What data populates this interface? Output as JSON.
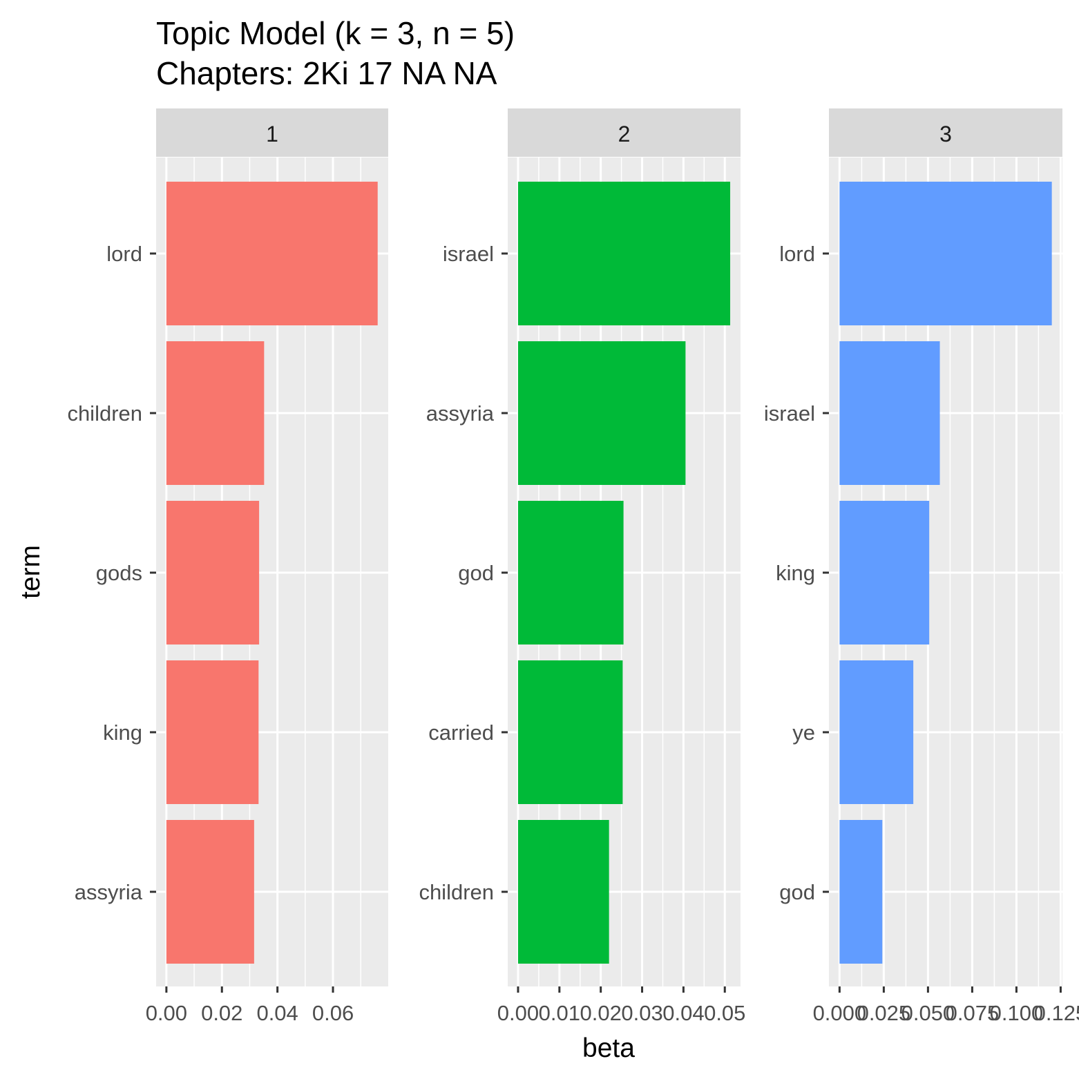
{
  "chart_data": {
    "type": "bar",
    "orientation": "horizontal",
    "title": "Topic Model (k = 3, n = 5)",
    "subtitle": "Chapters: 2Ki 17 NA NA",
    "xlabel": "beta",
    "ylabel": "term",
    "grid": true,
    "legend": "none",
    "panels": [
      {
        "strip": "1",
        "color": "#F8766D",
        "xlim": [
          -0.0037,
          0.0799
        ],
        "xticks": [
          0,
          0.02,
          0.04,
          0.06
        ],
        "xtick_labels": [
          "0.00",
          "0.02",
          "0.04",
          "0.06"
        ],
        "xminor": [
          0.01,
          0.03,
          0.05,
          0.07
        ],
        "categories": [
          "lord",
          "children",
          "gods",
          "king",
          "assyria"
        ],
        "values": [
          0.0761,
          0.0352,
          0.0334,
          0.0332,
          0.0316
        ]
      },
      {
        "strip": "2",
        "color": "#00BA38",
        "xlim": [
          -0.0025,
          0.0538
        ],
        "xticks": [
          0,
          0.01,
          0.02,
          0.03,
          0.04,
          0.05
        ],
        "xtick_labels": [
          "0.00",
          "0.01",
          "0.02",
          "0.03",
          "0.04",
          "0.05"
        ],
        "xminor": [
          0.005,
          0.015,
          0.025,
          0.035,
          0.045
        ],
        "categories": [
          "israel",
          "assyria",
          "god",
          "carried",
          "children"
        ],
        "values": [
          0.0513,
          0.0405,
          0.0255,
          0.0253,
          0.022
        ]
      },
      {
        "strip": "3",
        "color": "#619CFF",
        "xlim": [
          -0.006,
          0.126
        ],
        "xticks": [
          0,
          0.025,
          0.05,
          0.075,
          0.1,
          0.125
        ],
        "xtick_labels": [
          "0.000",
          "0.025",
          "0.050",
          "0.075",
          "0.100",
          "0.125"
        ],
        "xminor": [
          0.0125,
          0.0375,
          0.0625,
          0.0875,
          0.1125
        ],
        "categories": [
          "lord",
          "israel",
          "king",
          "ye",
          "god"
        ],
        "values": [
          0.12,
          0.0567,
          0.0507,
          0.0417,
          0.0242
        ]
      }
    ]
  }
}
